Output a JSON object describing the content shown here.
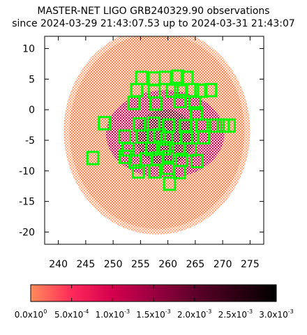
{
  "title_line1": "MASTER-NET LIGO GRB240329.90 observations",
  "title_line2": "since 2024-03-29 21:43:07.53 up to 2024-03-31 21:43:07",
  "chart_data": {
    "type": "heatmap",
    "title": "MASTER-NET LIGO GRB240329.90 observations since 2024-03-29 21:43:07.53 up to 2024-03-31 21:43:07",
    "xlabel": "",
    "ylabel": "",
    "xlim": [
      237.5,
      277.5
    ],
    "ylim": [
      -22,
      12
    ],
    "xticks": [
      240,
      245,
      250,
      255,
      260,
      265,
      270,
      275
    ],
    "yticks": [
      10,
      5,
      0,
      -5,
      -10,
      -15,
      -20
    ],
    "grid": false,
    "probability_region": {
      "center": [
        258,
        -3.5
      ],
      "radius": 16
    },
    "peak_region": {
      "center": [
        259.5,
        -4
      ],
      "radius": 4.5
    },
    "colorbar": {
      "ticks": [
        "0.0x10",
        "5.0x10",
        "1.0x10",
        "1.5x10",
        "2.0x10",
        "2.5x10",
        "3.0x10"
      ],
      "exponents": [
        "0",
        "-4",
        "-3",
        "-3",
        "-3",
        "-3",
        "-3"
      ],
      "values": [
        0,
        0.0005,
        0.001,
        0.0015,
        0.002,
        0.0025,
        0.003
      ],
      "colors": [
        "#ff8c5a",
        "#ff2a5a",
        "#d4004e",
        "#9a003f",
        "#5e002a",
        "#2e0012",
        "#000000"
      ]
    },
    "fields": [
      [
        255.2,
        5.2
      ],
      [
        257.5,
        5.1
      ],
      [
        259.5,
        5.2
      ],
      [
        261.8,
        5.4
      ],
      [
        263.5,
        5.2
      ],
      [
        254.3,
        3.2
      ],
      [
        257.5,
        3.0
      ],
      [
        260.8,
        3.1
      ],
      [
        262.3,
        3.0
      ],
      [
        264.5,
        3.2
      ],
      [
        266.0,
        3.1
      ],
      [
        267.8,
        3.2
      ],
      [
        253.8,
        1.1
      ],
      [
        257.8,
        1.0
      ],
      [
        262.2,
        1.4
      ],
      [
        264.9,
        1.1
      ],
      [
        265.2,
        -0.6
      ],
      [
        248.4,
        -2.2
      ],
      [
        254.8,
        -2.4
      ],
      [
        257.4,
        -2.3
      ],
      [
        260.1,
        -2.6
      ],
      [
        263.2,
        -2.7
      ],
      [
        266.2,
        -2.6
      ],
      [
        268.7,
        -2.6
      ],
      [
        270.1,
        -2.6
      ],
      [
        271.2,
        -2.6
      ],
      [
        252.1,
        -4.4
      ],
      [
        255.3,
        -4.4
      ],
      [
        258.5,
        -4.2
      ],
      [
        259.8,
        -4.7
      ],
      [
        263.4,
        -4.5
      ],
      [
        266.5,
        -4.5
      ],
      [
        252.7,
        -6.5
      ],
      [
        257.0,
        -6.4
      ],
      [
        259.4,
        -6.3
      ],
      [
        262.0,
        -6.5
      ],
      [
        264.1,
        -6.5
      ],
      [
        246.3,
        -7.9
      ],
      [
        252.2,
        -7.7
      ],
      [
        254.0,
        -8.5
      ],
      [
        256.0,
        -8.1
      ],
      [
        258.1,
        -8.0
      ],
      [
        260.0,
        -7.8
      ],
      [
        262.5,
        -8.2
      ],
      [
        265.3,
        -8.4
      ],
      [
        254.6,
        -10.1
      ],
      [
        257.6,
        -10.1
      ],
      [
        260.0,
        -9.5
      ],
      [
        262.1,
        -10.2
      ],
      [
        260.3,
        -12.1
      ]
    ]
  }
}
